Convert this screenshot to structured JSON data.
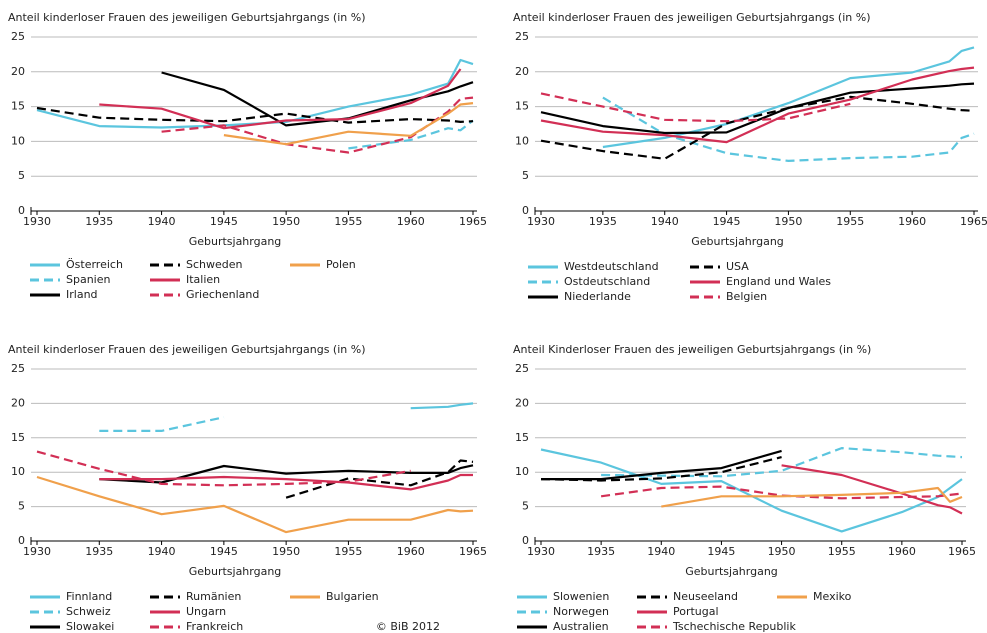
{
  "chart_data": [
    {
      "type": "line",
      "title": "Anteil kinderloser Frauen des jeweiligen Geburtsjahrgangs (in %)",
      "x_label": "Geburtsjahrgang",
      "x": [
        1930,
        1935,
        1940,
        1945,
        1950,
        1955,
        1960,
        1963,
        1964,
        1965
      ],
      "xlim": [
        1930,
        1965
      ],
      "xticks": [
        1930,
        1935,
        1940,
        1945,
        1950,
        1955,
        1960,
        1965
      ],
      "ylim": [
        0,
        25
      ],
      "yticks": [
        0,
        5,
        10,
        15,
        20,
        25
      ],
      "grid": true,
      "series": [
        {
          "name": "Österreich",
          "color": "#5bc5de",
          "dashed": false,
          "values": [
            14.5,
            12.2,
            12.0,
            12.3,
            12.8,
            15.0,
            16.7,
            18.3,
            21.7,
            21.1
          ]
        },
        {
          "name": "Spanien",
          "color": "#5bc5de",
          "dashed": true,
          "values": [
            null,
            null,
            null,
            null,
            null,
            9.0,
            10.2,
            11.9,
            11.6,
            13.0
          ]
        },
        {
          "name": "Irland",
          "color": "#000000",
          "dashed": false,
          "values": [
            null,
            null,
            19.9,
            17.4,
            12.3,
            13.3,
            15.9,
            17.2,
            17.9,
            18.5
          ]
        },
        {
          "name": "Schweden",
          "color": "#000000",
          "dashed": true,
          "values": [
            14.8,
            13.4,
            13.1,
            12.9,
            14.0,
            12.7,
            13.2,
            13.0,
            12.8,
            12.9
          ]
        },
        {
          "name": "Italien",
          "color": "#d22f55",
          "dashed": false,
          "values": [
            null,
            15.3,
            14.7,
            11.9,
            13.0,
            13.2,
            15.5,
            18.0,
            20.4,
            null
          ]
        },
        {
          "name": "Griechenland",
          "color": "#d22f55",
          "dashed": true,
          "values": [
            null,
            null,
            11.4,
            12.3,
            9.6,
            8.4,
            10.6,
            14.3,
            16.1,
            16.3
          ]
        },
        {
          "name": "Polen",
          "color": "#f0a04b",
          "dashed": false,
          "values": [
            null,
            null,
            null,
            10.9,
            9.6,
            11.4,
            10.8,
            14.0,
            15.3,
            15.5
          ]
        }
      ]
    },
    {
      "type": "line",
      "title": "Anteil kinderloser Frauen des jeweiligen Geburtsjahrgangs (in %)",
      "x_label": "Geburtsjahrgang",
      "x": [
        1930,
        1935,
        1940,
        1945,
        1950,
        1955,
        1960,
        1963,
        1964,
        1965
      ],
      "xlim": [
        1930,
        1965
      ],
      "xticks": [
        1930,
        1935,
        1940,
        1945,
        1950,
        1955,
        1960,
        1965
      ],
      "ylim": [
        0,
        25
      ],
      "yticks": [
        0,
        5,
        10,
        15,
        20,
        25
      ],
      "grid": true,
      "series": [
        {
          "name": "Westdeutschland",
          "color": "#5bc5de",
          "dashed": false,
          "values": [
            null,
            9.2,
            10.5,
            12.5,
            15.5,
            19.1,
            19.9,
            21.5,
            23.0,
            23.5
          ]
        },
        {
          "name": "Ostdeutschland",
          "color": "#5bc5de",
          "dashed": true,
          "values": [
            null,
            16.3,
            11.0,
            8.3,
            7.2,
            7.6,
            7.8,
            8.4,
            10.5,
            11.1
          ]
        },
        {
          "name": "Niederlande",
          "color": "#000000",
          "dashed": false,
          "values": [
            14.2,
            12.2,
            11.2,
            11.3,
            14.8,
            17.0,
            17.6,
            18.0,
            18.2,
            18.3
          ]
        },
        {
          "name": "USA",
          "color": "#000000",
          "dashed": true,
          "values": [
            10.1,
            8.6,
            7.5,
            12.6,
            14.8,
            16.4,
            15.4,
            14.7,
            14.5,
            14.4
          ]
        },
        {
          "name": "England und Wales",
          "color": "#d22f55",
          "dashed": false,
          "values": [
            13.0,
            11.4,
            10.9,
            9.9,
            14.0,
            16.0,
            18.9,
            20.1,
            20.4,
            20.6
          ]
        },
        {
          "name": "Belgien",
          "color": "#d22f55",
          "dashed": true,
          "values": [
            16.9,
            15.0,
            13.1,
            12.9,
            13.3,
            15.4,
            null,
            null,
            null,
            null
          ]
        }
      ]
    },
    {
      "type": "line",
      "title": "Anteil kinderloser Frauen des jeweiligen Geburtsjahrgangs (in %)",
      "x_label": "Geburtsjahrgang",
      "x": [
        1930,
        1935,
        1940,
        1945,
        1950,
        1955,
        1960,
        1963,
        1964,
        1965
      ],
      "xlim": [
        1930,
        1965
      ],
      "xticks": [
        1930,
        1935,
        1940,
        1945,
        1950,
        1955,
        1960,
        1965
      ],
      "ylim": [
        0,
        25
      ],
      "yticks": [
        0,
        5,
        10,
        15,
        20,
        25
      ],
      "grid": true,
      "series": [
        {
          "name": "Finnland",
          "color": "#5bc5de",
          "dashed": false,
          "values": [
            null,
            null,
            null,
            null,
            null,
            null,
            19.3,
            19.5,
            19.8,
            20.0
          ]
        },
        {
          "name": "Schweiz",
          "color": "#5bc5de",
          "dashed": true,
          "values": [
            null,
            16.0,
            16.0,
            18.0,
            null,
            null,
            null,
            null,
            null,
            null
          ]
        },
        {
          "name": "Slowakei",
          "color": "#000000",
          "dashed": false,
          "values": [
            null,
            9.0,
            8.5,
            10.9,
            9.8,
            10.2,
            9.9,
            9.9,
            10.6,
            11.0
          ]
        },
        {
          "name": "Rumänien",
          "color": "#000000",
          "dashed": true,
          "values": [
            null,
            null,
            null,
            null,
            6.3,
            9.1,
            8.1,
            10.0,
            11.7,
            11.5
          ]
        },
        {
          "name": "Ungarn",
          "color": "#d22f55",
          "dashed": false,
          "values": [
            null,
            9.0,
            9.0,
            9.3,
            9.0,
            8.5,
            7.5,
            8.8,
            9.6,
            9.6
          ]
        },
        {
          "name": "Frankreich",
          "color": "#d22f55",
          "dashed": true,
          "values": [
            13.0,
            10.5,
            8.3,
            8.1,
            8.3,
            8.6,
            10.2,
            null,
            null,
            null
          ]
        },
        {
          "name": "Bulgarien",
          "color": "#f0a04b",
          "dashed": false,
          "values": [
            9.3,
            6.5,
            3.9,
            5.1,
            1.3,
            3.1,
            3.1,
            4.5,
            4.3,
            4.4
          ]
        }
      ]
    },
    {
      "type": "line",
      "title": "Anteil Kinderloser Frauen des jeweiligen Geburtsjahrgangs (in %)",
      "x_label": "Geburtsjahrgang",
      "x": [
        1930,
        1935,
        1940,
        1945,
        1950,
        1955,
        1960,
        1963,
        1964,
        1965
      ],
      "xlim": [
        1930,
        1965
      ],
      "xticks": [
        1930,
        1935,
        1940,
        1945,
        1950,
        1955,
        1960,
        1965
      ],
      "ylim": [
        0,
        25
      ],
      "yticks": [
        0,
        5,
        10,
        15,
        20,
        25
      ],
      "grid": true,
      "series": [
        {
          "name": "Slowenien",
          "color": "#5bc5de",
          "dashed": false,
          "values": [
            13.3,
            11.4,
            8.3,
            8.7,
            4.4,
            1.4,
            4.2,
            6.4,
            7.7,
            9.0
          ]
        },
        {
          "name": "Norwegen",
          "color": "#5bc5de",
          "dashed": true,
          "values": [
            null,
            9.6,
            9.5,
            9.4,
            10.2,
            13.5,
            12.9,
            12.4,
            12.3,
            12.2
          ]
        },
        {
          "name": "Australien",
          "color": "#000000",
          "dashed": false,
          "values": [
            9.0,
            9.0,
            9.9,
            10.6,
            13.1,
            null,
            null,
            null,
            null,
            null
          ]
        },
        {
          "name": "Neuseeland",
          "color": "#000000",
          "dashed": true,
          "values": [
            9.0,
            8.8,
            9.1,
            10.0,
            12.2,
            null,
            null,
            null,
            null,
            null
          ]
        },
        {
          "name": "Portugal",
          "color": "#d22f55",
          "dashed": false,
          "values": [
            null,
            null,
            null,
            null,
            11.0,
            9.6,
            6.9,
            5.2,
            4.9,
            4.0
          ]
        },
        {
          "name": "Tschechische Republik",
          "color": "#d22f55",
          "dashed": true,
          "values": [
            null,
            6.5,
            7.7,
            7.9,
            6.6,
            6.2,
            6.4,
            6.5,
            6.7,
            6.9
          ]
        },
        {
          "name": "Mexiko",
          "color": "#f0a04b",
          "dashed": false,
          "values": [
            null,
            null,
            5.0,
            6.5,
            6.5,
            6.7,
            7.0,
            7.7,
            5.7,
            6.4
          ]
        }
      ]
    }
  ],
  "source": "© BiB 2012"
}
